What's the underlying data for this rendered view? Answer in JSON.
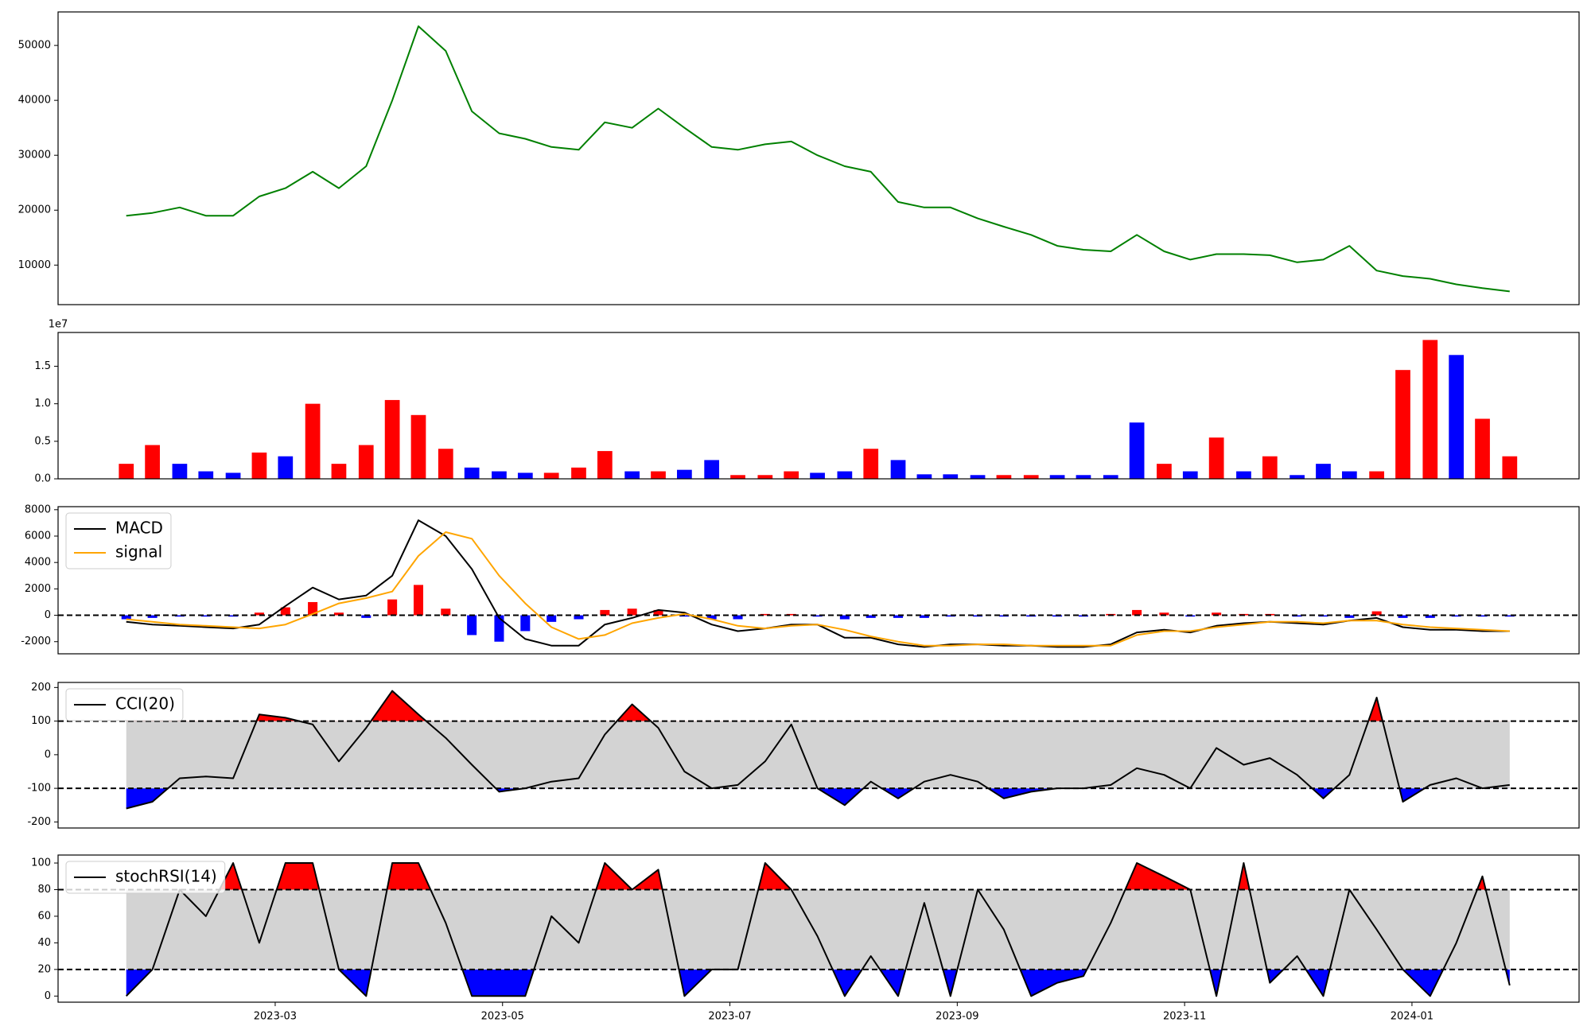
{
  "chart_data": [
    {
      "type": "line",
      "color": "green",
      "x": [
        1.69,
        1.92,
        2.16,
        2.39,
        2.63,
        2.86,
        3.09,
        3.33,
        3.56,
        3.8,
        4.03,
        4.26,
        4.5,
        4.73,
        4.97,
        5.2,
        5.43,
        5.67,
        5.9,
        6.14,
        6.37,
        6.6,
        6.84,
        7.07,
        7.31,
        7.54,
        7.77,
        8.01,
        8.24,
        8.48,
        8.71,
        8.94,
        9.18,
        9.41,
        9.65,
        9.88,
        10.11,
        10.35,
        10.58,
        10.82,
        11.05,
        11.28,
        11.52,
        11.75,
        11.99,
        12.22,
        12.45,
        12.69,
        12.92,
        13.16,
        13.39,
        13.62,
        13.86
      ],
      "values": [
        19000,
        19500,
        20500,
        19000,
        19000,
        22500,
        24000,
        27000,
        24000,
        28000,
        40000,
        53500,
        49000,
        38000,
        34000,
        33000,
        31500,
        31000,
        36000,
        35000,
        38500,
        35000,
        31500,
        31000,
        32000,
        32500,
        30000,
        28000,
        27000,
        21500,
        20500,
        20500,
        18500,
        17000,
        15500,
        13500,
        12800,
        12500,
        15500,
        12500,
        11000,
        12000,
        12000,
        11800,
        10500,
        11000,
        13500,
        9000,
        8000,
        7500,
        6500,
        5800,
        5200
      ],
      "xlim": [
        1.09,
        14.47
      ],
      "ylim": [
        2800,
        56100
      ],
      "yticks": [
        10000,
        20000,
        30000,
        40000,
        50000
      ]
    },
    {
      "type": "bar",
      "offset_label": "1e7",
      "x": [
        1.69,
        1.92,
        2.16,
        2.39,
        2.63,
        2.86,
        3.09,
        3.33,
        3.56,
        3.8,
        4.03,
        4.26,
        4.5,
        4.73,
        4.97,
        5.2,
        5.43,
        5.67,
        5.9,
        6.14,
        6.37,
        6.6,
        6.84,
        7.07,
        7.31,
        7.54,
        7.77,
        8.01,
        8.24,
        8.48,
        8.71,
        8.94,
        9.18,
        9.41,
        9.65,
        9.88,
        10.11,
        10.35,
        10.58,
        10.82,
        11.05,
        11.28,
        11.52,
        11.75,
        11.99,
        12.22,
        12.45,
        12.69,
        12.92,
        13.16,
        13.39,
        13.62,
        13.86
      ],
      "values": [
        0.2,
        0.45,
        0.2,
        0.1,
        0.08,
        0.35,
        0.3,
        1.0,
        0.2,
        0.45,
        1.05,
        0.85,
        0.4,
        0.15,
        0.1,
        0.08,
        0.08,
        0.15,
        0.37,
        0.1,
        0.1,
        0.12,
        0.25,
        0.05,
        0.05,
        0.1,
        0.08,
        0.1,
        0.4,
        0.25,
        0.06,
        0.06,
        0.05,
        0.05,
        0.05,
        0.05,
        0.05,
        0.05,
        0.75,
        0.2,
        0.1,
        0.55,
        0.1,
        0.3,
        0.05,
        0.2,
        0.1,
        0.1,
        1.45,
        1.85,
        1.65,
        0.8,
        0.3
      ],
      "colors": [
        "red",
        "red",
        "blue",
        "blue",
        "blue",
        "red",
        "blue",
        "red",
        "red",
        "red",
        "red",
        "red",
        "red",
        "blue",
        "blue",
        "blue",
        "red",
        "red",
        "red",
        "blue",
        "red",
        "blue",
        "blue",
        "red",
        "red",
        "red",
        "blue",
        "blue",
        "red",
        "blue",
        "blue",
        "blue",
        "blue",
        "red",
        "red",
        "blue",
        "blue",
        "blue",
        "blue",
        "red",
        "blue",
        "red",
        "blue",
        "red",
        "blue",
        "blue",
        "blue",
        "red",
        "red",
        "red",
        "blue",
        "red",
        "red"
      ],
      "xlim": [
        1.09,
        14.47
      ],
      "ylim": [
        0,
        1.95
      ],
      "yticks": [
        {
          "value": 0,
          "label": "0.0"
        },
        0.5,
        {
          "value": 1,
          "label": "1.0"
        },
        1.5
      ]
    },
    {
      "type": "combo",
      "legend": "upper left",
      "zero_line": 0,
      "x": [
        1.69,
        1.92,
        2.16,
        2.39,
        2.63,
        2.86,
        3.09,
        3.33,
        3.56,
        3.8,
        4.03,
        4.26,
        4.5,
        4.73,
        4.97,
        5.2,
        5.43,
        5.67,
        5.9,
        6.14,
        6.37,
        6.6,
        6.84,
        7.07,
        7.31,
        7.54,
        7.77,
        8.01,
        8.24,
        8.48,
        8.71,
        8.94,
        9.18,
        9.41,
        9.65,
        9.88,
        10.11,
        10.35,
        10.58,
        10.82,
        11.05,
        11.28,
        11.52,
        11.75,
        11.99,
        12.22,
        12.45,
        12.69,
        12.92,
        13.16,
        13.39,
        13.62,
        13.86
      ],
      "series": [
        {
          "name": "MACD",
          "color": "black",
          "values": [
            -500,
            -700,
            -800,
            -900,
            -1000,
            -700,
            700,
            2100,
            1200,
            1500,
            3000,
            7200,
            6000,
            3500,
            -200,
            -1800,
            -2300,
            -2300,
            -700,
            -200,
            400,
            200,
            -700,
            -1200,
            -1000,
            -700,
            -700,
            -1700,
            -1700,
            -2200,
            -2400,
            -2200,
            -2200,
            -2300,
            -2300,
            -2400,
            -2400,
            -2200,
            -1300,
            -1100,
            -1300,
            -800,
            -600,
            -500,
            -600,
            -700,
            -400,
            -200,
            -900,
            -1100,
            -1100,
            -1200,
            -1200
          ]
        },
        {
          "name": "signal",
          "color": "orange",
          "values": [
            -300,
            -500,
            -700,
            -800,
            -900,
            -1000,
            -700,
            100,
            900,
            1300,
            1800,
            4500,
            6300,
            5800,
            3000,
            900,
            -900,
            -1800,
            -1500,
            -600,
            -200,
            100,
            -300,
            -800,
            -1000,
            -800,
            -700,
            -1100,
            -1600,
            -2000,
            -2300,
            -2300,
            -2200,
            -2200,
            -2300,
            -2300,
            -2300,
            -2300,
            -1500,
            -1200,
            -1200,
            -900,
            -700,
            -500,
            -500,
            -600,
            -400,
            -400,
            -700,
            -900,
            -1000,
            -1100,
            -1200
          ]
        }
      ],
      "histogram": {
        "up_color": "red",
        "down_color": "blue",
        "values": [
          -300,
          -200,
          -100,
          -100,
          -100,
          200,
          600,
          1000,
          200,
          -200,
          1200,
          2300,
          500,
          -1500,
          -2000,
          -1200,
          -500,
          -300,
          400,
          500,
          400,
          -100,
          -300,
          -300,
          100,
          100,
          -100,
          -300,
          -200,
          -200,
          -200,
          -100,
          -100,
          -100,
          -100,
          -100,
          -100,
          100,
          400,
          200,
          -100,
          200,
          100,
          100,
          -100,
          -100,
          -200,
          300,
          -200,
          -200,
          -100,
          -100,
          -100
        ]
      },
      "xlim": [
        1.09,
        14.47
      ],
      "ylim": [
        -2920,
        8230
      ],
      "yticks": [
        -2000,
        0,
        2000,
        4000,
        6000,
        8000
      ]
    },
    {
      "type": "band",
      "legend": "upper left",
      "x": [
        1.69,
        1.92,
        2.16,
        2.39,
        2.63,
        2.86,
        3.09,
        3.33,
        3.56,
        3.8,
        4.03,
        4.26,
        4.5,
        4.73,
        4.97,
        5.2,
        5.43,
        5.67,
        5.9,
        6.14,
        6.37,
        6.6,
        6.84,
        7.07,
        7.31,
        7.54,
        7.77,
        8.01,
        8.24,
        8.48,
        8.71,
        8.94,
        9.18,
        9.41,
        9.65,
        9.88,
        10.11,
        10.35,
        10.58,
        10.82,
        11.05,
        11.28,
        11.52,
        11.75,
        11.99,
        12.22,
        12.45,
        12.69,
        12.92,
        13.16,
        13.39,
        13.62,
        13.86
      ],
      "series": [
        {
          "name": "CCI(20)",
          "color": "black",
          "values": [
            -160,
            -140,
            -70,
            -65,
            -70,
            120,
            110,
            90,
            -20,
            80,
            190,
            120,
            50,
            -30,
            -110,
            -100,
            -80,
            -70,
            60,
            150,
            80,
            -50,
            -100,
            -90,
            -20,
            90,
            -100,
            -150,
            -80,
            -130,
            -80,
            -60,
            -80,
            -130,
            -110,
            -100,
            -100,
            -90,
            -40,
            -60,
            -100,
            20,
            -30,
            -10,
            -60,
            -130,
            -60,
            170,
            -140,
            -90,
            -70,
            -100,
            -90
          ]
        }
      ],
      "bands": {
        "upper": 100,
        "lower": -100,
        "upper_color": "red",
        "lower_color": "blue",
        "middle_color": "lightgray"
      },
      "xlim": [
        1.09,
        14.47
      ],
      "ylim": [
        -218,
        215
      ],
      "yticks": [
        -200,
        -100,
        0,
        100,
        200
      ]
    },
    {
      "type": "band",
      "legend": "upper left",
      "x": [
        1.69,
        1.92,
        2.16,
        2.39,
        2.63,
        2.86,
        3.09,
        3.33,
        3.56,
        3.8,
        4.03,
        4.26,
        4.5,
        4.73,
        4.97,
        5.2,
        5.43,
        5.67,
        5.9,
        6.14,
        6.37,
        6.6,
        6.84,
        7.07,
        7.31,
        7.54,
        7.77,
        8.01,
        8.24,
        8.48,
        8.71,
        8.94,
        9.18,
        9.41,
        9.65,
        9.88,
        10.11,
        10.35,
        10.58,
        10.82,
        11.05,
        11.28,
        11.52,
        11.75,
        11.99,
        12.22,
        12.45,
        12.69,
        12.92,
        13.16,
        13.39,
        13.62,
        13.86
      ],
      "series": [
        {
          "name": "stochRSI(14)",
          "color": "black",
          "values": [
            0,
            20,
            80,
            60,
            100,
            40,
            100,
            100,
            20,
            0,
            100,
            100,
            55,
            0,
            0,
            0,
            60,
            40,
            100,
            80,
            95,
            0,
            20,
            20,
            100,
            80,
            45,
            0,
            30,
            0,
            70,
            0,
            80,
            50,
            0,
            10,
            15,
            55,
            100,
            90,
            80,
            0,
            100,
            10,
            30,
            0,
            80,
            50,
            20,
            0,
            40,
            90,
            8
          ]
        }
      ],
      "bands": {
        "upper": 80,
        "lower": 20,
        "upper_color": "red",
        "lower_color": "blue",
        "middle_color": "lightgray"
      },
      "xlim": [
        1.09,
        14.47
      ],
      "ylim": [
        -4.6,
        106
      ],
      "yticks": [
        0,
        20,
        40,
        60,
        80,
        100
      ],
      "xticks": [
        {
          "value": 3,
          "label": "2023-03"
        },
        {
          "value": 5,
          "label": "2023-05"
        },
        {
          "value": 7,
          "label": "2023-07"
        },
        {
          "value": 9,
          "label": "2023-09"
        },
        {
          "value": 11,
          "label": "2023-11"
        },
        {
          "value": 13,
          "label": "2024-01"
        }
      ]
    }
  ]
}
